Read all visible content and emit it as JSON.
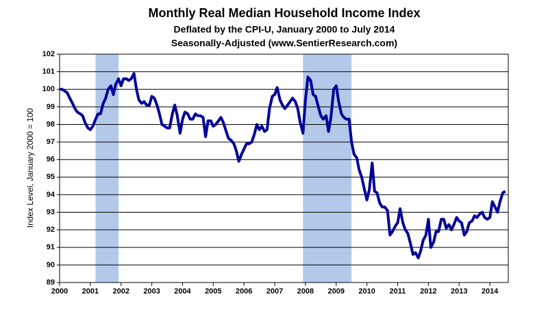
{
  "chart_data": {
    "type": "line",
    "title": "Monthly Real Median Household Income Index",
    "subtitle": "Deflated by the CPI-U, January 2000 to July 2014",
    "subtitle2": "Seasonally-Adjusted (www.SentierResearch.com)",
    "y_label": "Index Level, January 2000 = 100",
    "xlim": [
      2000,
      2014.6
    ],
    "xticks": [
      2000,
      2001,
      2002,
      2003,
      2004,
      2005,
      2006,
      2007,
      2008,
      2009,
      2010,
      2011,
      2012,
      2013,
      2014
    ],
    "ylim": [
      89,
      102
    ],
    "yticks": [
      89,
      90,
      91,
      92,
      93,
      94,
      95,
      96,
      97,
      98,
      99,
      100,
      101,
      102
    ],
    "grid": true,
    "shaded_color": "#b3c9ea",
    "shaded_regions": [
      [
        2001.17,
        2001.92
      ],
      [
        2007.92,
        2009.5
      ]
    ],
    "series": [
      {
        "name": "Index",
        "color": "#000099",
        "x": [
          2000.0,
          2000.08,
          2000.17,
          2000.25,
          2000.33,
          2000.42,
          2000.5,
          2000.58,
          2000.67,
          2000.75,
          2000.83,
          2000.92,
          2001.0,
          2001.08,
          2001.17,
          2001.25,
          2001.33,
          2001.42,
          2001.5,
          2001.58,
          2001.67,
          2001.75,
          2001.83,
          2001.92,
          2002.0,
          2002.08,
          2002.17,
          2002.25,
          2002.33,
          2002.42,
          2002.5,
          2002.58,
          2002.67,
          2002.75,
          2002.83,
          2002.92,
          2003.0,
          2003.08,
          2003.17,
          2003.25,
          2003.33,
          2003.42,
          2003.5,
          2003.58,
          2003.67,
          2003.75,
          2003.83,
          2003.92,
          2004.0,
          2004.08,
          2004.17,
          2004.25,
          2004.33,
          2004.42,
          2004.5,
          2004.58,
          2004.67,
          2004.75,
          2004.83,
          2004.92,
          2005.0,
          2005.08,
          2005.17,
          2005.25,
          2005.33,
          2005.42,
          2005.5,
          2005.58,
          2005.67,
          2005.75,
          2005.83,
          2005.92,
          2006.0,
          2006.08,
          2006.17,
          2006.25,
          2006.33,
          2006.42,
          2006.5,
          2006.58,
          2006.67,
          2006.75,
          2006.83,
          2006.92,
          2007.0,
          2007.08,
          2007.17,
          2007.25,
          2007.33,
          2007.42,
          2007.5,
          2007.58,
          2007.67,
          2007.75,
          2007.83,
          2007.92,
          2008.0,
          2008.08,
          2008.17,
          2008.25,
          2008.33,
          2008.42,
          2008.5,
          2008.58,
          2008.67,
          2008.75,
          2008.83,
          2008.92,
          2009.0,
          2009.08,
          2009.17,
          2009.25,
          2009.33,
          2009.42,
          2009.5,
          2009.58,
          2009.67,
          2009.75,
          2009.83,
          2009.92,
          2010.0,
          2010.08,
          2010.17,
          2010.25,
          2010.33,
          2010.42,
          2010.5,
          2010.58,
          2010.67,
          2010.75,
          2010.83,
          2010.92,
          2011.0,
          2011.08,
          2011.17,
          2011.25,
          2011.33,
          2011.42,
          2011.5,
          2011.58,
          2011.67,
          2011.75,
          2011.83,
          2011.92,
          2012.0,
          2012.08,
          2012.17,
          2012.25,
          2012.33,
          2012.42,
          2012.5,
          2012.58,
          2012.67,
          2012.75,
          2012.83,
          2012.92,
          2013.0,
          2013.08,
          2013.17,
          2013.25,
          2013.33,
          2013.42,
          2013.5,
          2013.58,
          2013.67,
          2013.75,
          2013.83,
          2013.92,
          2014.0,
          2014.08,
          2014.17,
          2014.25,
          2014.33,
          2014.42,
          2014.5
        ],
        "values": [
          100.0,
          100.0,
          99.9,
          99.8,
          99.5,
          99.2,
          98.9,
          98.7,
          98.6,
          98.5,
          98.1,
          97.8,
          97.7,
          97.9,
          98.3,
          98.6,
          98.6,
          99.2,
          99.5,
          100.0,
          100.2,
          99.7,
          100.3,
          100.6,
          100.2,
          100.6,
          100.6,
          100.5,
          100.6,
          100.9,
          100.0,
          99.4,
          99.2,
          99.3,
          99.1,
          99.1,
          99.6,
          99.5,
          99.1,
          98.6,
          98.0,
          97.9,
          97.8,
          97.8,
          98.6,
          99.1,
          98.5,
          97.5,
          98.3,
          98.7,
          98.6,
          98.3,
          98.3,
          98.6,
          98.5,
          98.5,
          98.4,
          97.3,
          98.2,
          98.2,
          97.9,
          98.0,
          98.2,
          98.4,
          98.1,
          97.6,
          97.2,
          97.1,
          96.9,
          96.5,
          95.9,
          96.3,
          96.6,
          96.9,
          96.9,
          97.0,
          97.4,
          98.0,
          97.7,
          97.9,
          97.6,
          97.7,
          98.9,
          99.6,
          99.7,
          100.1,
          99.4,
          99.1,
          98.9,
          99.1,
          99.3,
          99.5,
          99.3,
          98.9,
          98.1,
          97.5,
          99.4,
          100.7,
          100.5,
          99.7,
          99.6,
          99.0,
          98.5,
          98.3,
          98.5,
          97.6,
          98.4,
          100.0,
          100.2,
          99.3,
          98.6,
          98.4,
          98.3,
          98.3,
          97.0,
          96.3,
          96.1,
          95.4,
          95.0,
          94.3,
          93.7,
          94.3,
          95.8,
          94.2,
          94.1,
          93.5,
          93.3,
          93.3,
          93.1,
          91.7,
          91.9,
          92.2,
          92.4,
          93.2,
          92.4,
          92.0,
          91.8,
          91.2,
          90.6,
          90.7,
          90.4,
          90.8,
          91.4,
          91.7,
          92.6,
          91.0,
          91.3,
          91.9,
          91.9,
          92.6,
          92.6,
          92.1,
          92.3,
          92.0,
          92.3,
          92.7,
          92.5,
          92.4,
          91.7,
          91.9,
          92.4,
          92.5,
          92.8,
          92.7,
          92.9,
          93.0,
          92.7,
          92.6,
          92.7,
          93.6,
          93.3,
          93.0,
          93.6,
          94.1,
          94.2
        ]
      }
    ]
  }
}
